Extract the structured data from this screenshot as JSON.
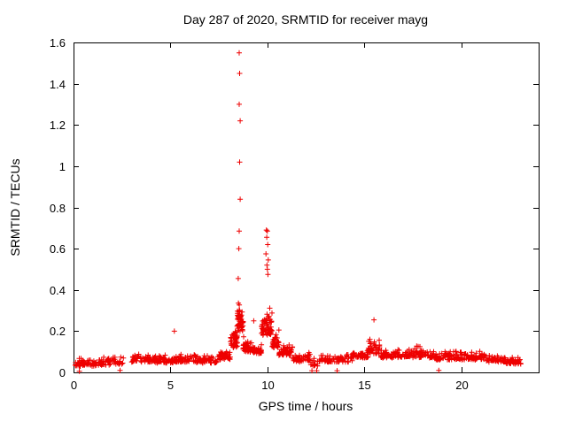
{
  "chart_data": {
    "type": "scatter",
    "title": "Day 287 of 2020, SRMTID for receiver mayg",
    "xlabel": "GPS time / hours",
    "ylabel": "SRMTID / TECUs",
    "marker": "+",
    "marker_color": "#ee0000",
    "axis_color": "#000000",
    "background": "#ffffff",
    "grid": false,
    "legend": "none",
    "xlim": [
      0,
      24
    ],
    "ylim": [
      0,
      1.6
    ],
    "xticks": [
      0,
      5,
      10,
      15,
      20
    ],
    "yticks": [
      {
        "v": 0.0,
        "label": "0"
      },
      {
        "v": 0.2,
        "label": "0.2"
      },
      {
        "v": 0.4,
        "label": "0.4"
      },
      {
        "v": 0.6,
        "label": "0.6"
      },
      {
        "v": 0.8,
        "label": "0.8"
      },
      {
        "v": 1.0,
        "label": "1"
      },
      {
        "v": 1.2,
        "label": "1.2"
      },
      {
        "v": 1.4,
        "label": "1.4"
      },
      {
        "v": 1.6,
        "label": "1.6"
      }
    ],
    "seed": 20287,
    "description": "Dense baseline of SRMTID values near 0.03-0.12 TECU across 0-23 h, large TID spike cluster at ~8.6 h reaching 1.55 TECU, secondary spike cluster at ~10.0 h reaching ~0.69 TECU, minor enhancement near 15.5 h (~0.25 TECU).",
    "noise_segments": [
      {
        "x0": 0.05,
        "x1": 0.8,
        "n": 45,
        "base": 0.03,
        "amp": 0.035,
        "max": 0.12
      },
      {
        "x0": 0.8,
        "x1": 1.3,
        "n": 20,
        "base": 0.03,
        "amp": 0.03,
        "max": 0.09
      },
      {
        "x0": 1.3,
        "x1": 2.1,
        "n": 35,
        "base": 0.035,
        "amp": 0.035,
        "max": 0.12
      },
      {
        "x0": 2.1,
        "x1": 2.6,
        "n": 18,
        "base": 0.04,
        "amp": 0.03,
        "max": 0.1
      },
      {
        "x0": 3.0,
        "x1": 4.2,
        "n": 60,
        "base": 0.05,
        "amp": 0.035,
        "max": 0.14
      },
      {
        "x0": 4.2,
        "x1": 5.2,
        "n": 55,
        "base": 0.045,
        "amp": 0.03,
        "max": 0.12
      },
      {
        "x0": 5.2,
        "x1": 6.3,
        "n": 60,
        "base": 0.05,
        "amp": 0.035,
        "max": 0.16
      },
      {
        "x0": 6.3,
        "x1": 7.4,
        "n": 60,
        "base": 0.045,
        "amp": 0.03,
        "max": 0.12
      },
      {
        "x0": 7.4,
        "x1": 8.1,
        "n": 45,
        "base": 0.06,
        "amp": 0.04,
        "max": 0.16
      },
      {
        "x0": 8.1,
        "x1": 8.45,
        "n": 45,
        "base": 0.12,
        "amp": 0.09,
        "max": 0.42
      },
      {
        "x0": 8.45,
        "x1": 8.75,
        "n": 55,
        "base": 0.2,
        "amp": 0.12,
        "max": 0.47
      },
      {
        "x0": 8.75,
        "x1": 9.1,
        "n": 40,
        "base": 0.1,
        "amp": 0.06,
        "max": 0.28
      },
      {
        "x0": 9.1,
        "x1": 9.7,
        "n": 45,
        "base": 0.09,
        "amp": 0.05,
        "max": 0.25
      },
      {
        "x0": 9.7,
        "x1": 10.25,
        "n": 70,
        "base": 0.18,
        "amp": 0.1,
        "max": 0.47
      },
      {
        "x0": 10.25,
        "x1": 10.6,
        "n": 35,
        "base": 0.12,
        "amp": 0.07,
        "max": 0.3
      },
      {
        "x0": 10.6,
        "x1": 11.3,
        "n": 50,
        "base": 0.08,
        "amp": 0.05,
        "max": 0.22
      },
      {
        "x0": 11.3,
        "x1": 12.2,
        "n": 45,
        "base": 0.05,
        "amp": 0.035,
        "max": 0.13
      },
      {
        "x0": 12.2,
        "x1": 12.6,
        "n": 15,
        "base": 0.03,
        "amp": 0.03,
        "max": 0.1
      },
      {
        "x0": 12.6,
        "x1": 13.4,
        "n": 35,
        "base": 0.05,
        "amp": 0.03,
        "max": 0.11
      },
      {
        "x0": 13.4,
        "x1": 14.4,
        "n": 40,
        "base": 0.05,
        "amp": 0.035,
        "max": 0.12
      },
      {
        "x0": 14.4,
        "x1": 15.2,
        "n": 45,
        "base": 0.07,
        "amp": 0.04,
        "max": 0.16
      },
      {
        "x0": 15.2,
        "x1": 15.8,
        "n": 40,
        "base": 0.09,
        "amp": 0.06,
        "max": 0.26
      },
      {
        "x0": 15.8,
        "x1": 16.6,
        "n": 40,
        "base": 0.07,
        "amp": 0.04,
        "max": 0.16
      },
      {
        "x0": 16.6,
        "x1": 17.6,
        "n": 50,
        "base": 0.07,
        "amp": 0.04,
        "max": 0.17
      },
      {
        "x0": 17.6,
        "x1": 18.6,
        "n": 50,
        "base": 0.07,
        "amp": 0.045,
        "max": 0.19
      },
      {
        "x0": 18.6,
        "x1": 19.3,
        "n": 35,
        "base": 0.06,
        "amp": 0.04,
        "max": 0.15
      },
      {
        "x0": 19.3,
        "x1": 20.3,
        "n": 50,
        "base": 0.06,
        "amp": 0.04,
        "max": 0.14
      },
      {
        "x0": 20.3,
        "x1": 21.3,
        "n": 50,
        "base": 0.06,
        "amp": 0.035,
        "max": 0.13
      },
      {
        "x0": 21.3,
        "x1": 22.3,
        "n": 50,
        "base": 0.05,
        "amp": 0.03,
        "max": 0.11
      },
      {
        "x0": 22.3,
        "x1": 23.1,
        "n": 45,
        "base": 0.04,
        "amp": 0.03,
        "max": 0.1
      }
    ],
    "outlier_points": [
      [
        0.3,
        0.005
      ],
      [
        2.4,
        0.01
      ],
      [
        5.2,
        0.2
      ],
      [
        8.5,
        0.455
      ],
      [
        8.55,
        1.55
      ],
      [
        8.57,
        1.45
      ],
      [
        8.55,
        1.3
      ],
      [
        8.6,
        1.22
      ],
      [
        8.57,
        1.02
      ],
      [
        8.6,
        0.84
      ],
      [
        8.55,
        0.685
      ],
      [
        8.53,
        0.6
      ],
      [
        9.3,
        0.25
      ],
      [
        9.95,
        0.69
      ],
      [
        10.0,
        0.685
      ],
      [
        9.97,
        0.655
      ],
      [
        10.02,
        0.62
      ],
      [
        9.93,
        0.575
      ],
      [
        10.05,
        0.545
      ],
      [
        9.98,
        0.52
      ],
      [
        10.0,
        0.5
      ],
      [
        10.03,
        0.475
      ],
      [
        12.3,
        0.008
      ],
      [
        12.55,
        0.008
      ],
      [
        13.6,
        0.008
      ],
      [
        15.5,
        0.255
      ],
      [
        18.85,
        0.01
      ]
    ]
  }
}
